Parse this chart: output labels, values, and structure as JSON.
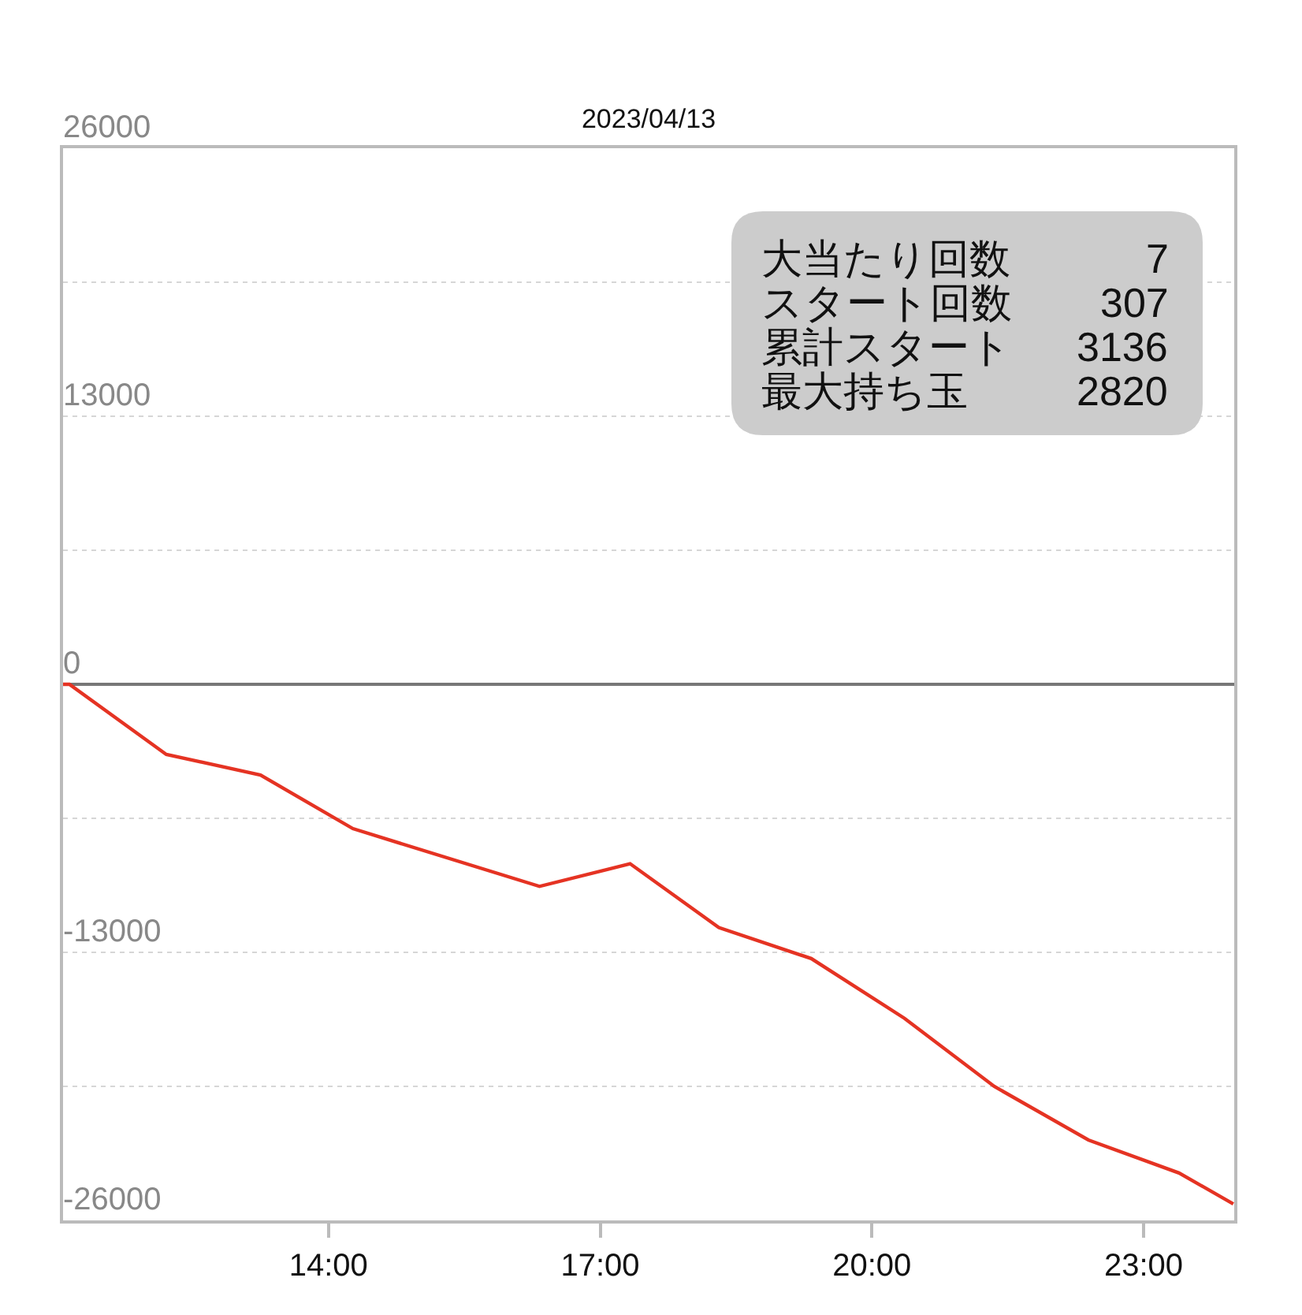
{
  "chart_data": {
    "type": "line",
    "title": "2023/04/13",
    "x": [
      11.07,
      11.14,
      12.21,
      13.25,
      14.27,
      16.33,
      17.33,
      18.31,
      19.33,
      20.36,
      21.35,
      22.39,
      23.39,
      23.99
    ],
    "series": [
      {
        "color": "#e53323",
        "values": [
          0,
          0,
          -3400,
          -4400,
          -7000,
          -9800,
          -8700,
          -11800,
          -13300,
          -16200,
          -19500,
          -22100,
          -23700,
          -25200
        ]
      }
    ],
    "xlim": [
      11.07,
      24
    ],
    "xticks": [
      {
        "value": 14,
        "label": "14:00"
      },
      {
        "value": 17,
        "label": "17:00"
      },
      {
        "value": 20,
        "label": "20:00"
      },
      {
        "value": 23,
        "label": "23:00"
      }
    ],
    "ylim": [
      -26000,
      26000
    ],
    "yticks": [
      26000,
      {
        "value": 19500,
        "label": null
      },
      13000,
      {
        "value": 6500,
        "label": null
      },
      0,
      {
        "value": -6500,
        "label": null
      },
      -13000,
      {
        "value": -19500,
        "label": null
      },
      -26000
    ],
    "grid": "y",
    "marker": "none",
    "line_style": "solid",
    "annotations": [
      "大当たり回数",
      "7",
      "スタート回数",
      "307",
      "累計スタート",
      "3136",
      "最大持ち玉",
      "2820"
    ]
  }
}
